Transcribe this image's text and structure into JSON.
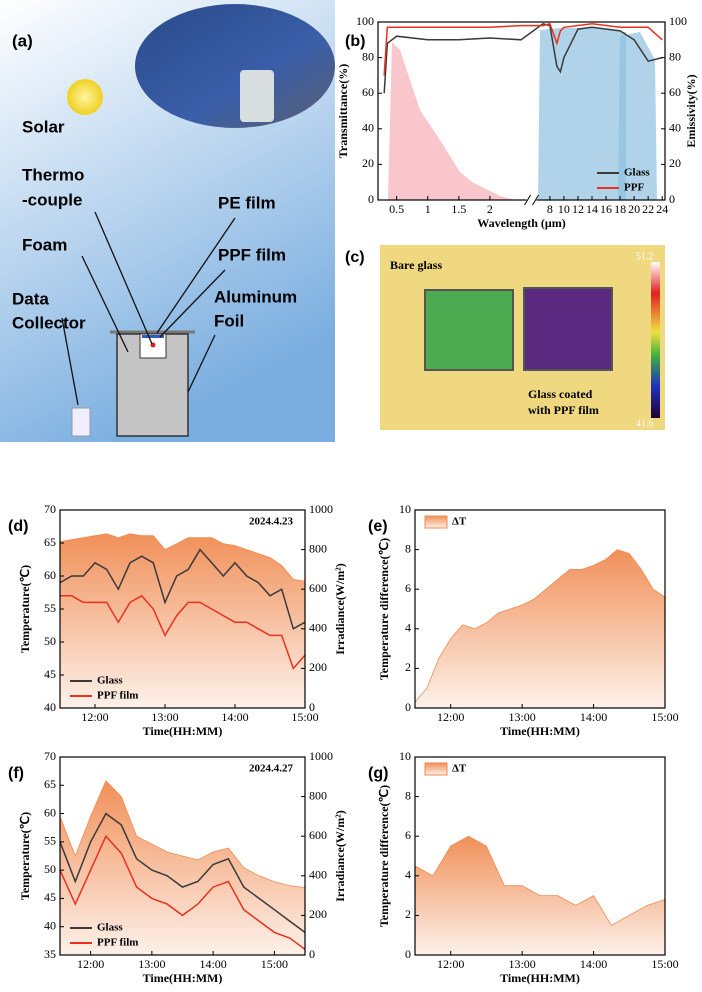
{
  "panel_a": {
    "title": "(a)",
    "labels": [
      "Solar",
      "Thermo",
      "-couple",
      "PE film",
      "Foam",
      "PPF film",
      "Data",
      "Collector",
      "Aluminum",
      "Foil"
    ]
  },
  "panel_c": {
    "title": "(c)",
    "labels": [
      "Bare glass",
      "Glass coated",
      "with PPF film"
    ],
    "scale_max": "51.2",
    "scale_min": "41.6"
  },
  "chart_data": [
    {
      "type": "line",
      "title": "(b)",
      "xlabel": "Wavelength (μm)",
      "ylabel": "Transmittance(%)",
      "y2label": "Emissivity(%)",
      "xlim": [
        0.2,
        24.4
      ],
      "xbreak": [
        2.6,
        6
      ],
      "xticks": [
        0.5,
        1,
        1.5,
        2,
        8,
        10,
        12,
        14,
        16,
        18,
        20,
        22,
        24
      ],
      "ylim": [
        0,
        100
      ],
      "yticks": [
        0,
        20,
        40,
        60,
        80,
        100
      ],
      "y2lim": [
        0,
        100
      ],
      "y2ticks": [
        0,
        20,
        40,
        60,
        80,
        100
      ],
      "legend": "lower right",
      "series": [
        {
          "name": "Glass",
          "color": "#3a3a3a",
          "x": [
            0.3,
            0.35,
            0.5,
            1,
            1.5,
            2,
            2.5,
            7,
            8,
            9,
            9.5,
            10,
            12,
            14,
            18,
            20,
            22,
            24
          ],
          "values": [
            60,
            88,
            92,
            90,
            90,
            91,
            90,
            99,
            98,
            75,
            72,
            80,
            96,
            97,
            95,
            90,
            78,
            80
          ]
        },
        {
          "name": "PPF",
          "color": "#e8321e",
          "x": [
            0.3,
            0.35,
            0.5,
            1,
            2,
            2.5,
            7,
            8,
            9,
            9.5,
            10,
            14,
            18,
            22,
            24
          ],
          "values": [
            70,
            97,
            97,
            97,
            97,
            98,
            98,
            99,
            88,
            95,
            97,
            99,
            97,
            97,
            90
          ]
        }
      ]
    },
    {
      "type": "line",
      "title": "(d)",
      "xlabel": "Time(HH:MM)",
      "ylabel": "Temperature(℃)",
      "y2label": "Irradiance(W/m²)",
      "annotation": "2024.4.23",
      "xlim": [
        "11:30",
        "15:00"
      ],
      "xticks": [
        "12:00",
        "13:00",
        "14:00",
        "15:00"
      ],
      "ylim": [
        40,
        70
      ],
      "yticks": [
        40,
        45,
        50,
        55,
        60,
        65,
        70
      ],
      "y2lim": [
        0,
        1000
      ],
      "y2ticks": [
        0,
        200,
        400,
        600,
        800,
        1000
      ],
      "legend": "lower left",
      "x": [
        "11:30",
        "11:40",
        "11:50",
        "12:00",
        "12:10",
        "12:20",
        "12:30",
        "12:40",
        "12:50",
        "13:00",
        "13:10",
        "13:20",
        "13:30",
        "13:40",
        "13:50",
        "14:00",
        "14:10",
        "14:20",
        "14:30",
        "14:40",
        "14:50",
        "15:00"
      ],
      "series": [
        {
          "color": "#f08a50",
          "axis": "y2",
          "style": "area",
          "values": [
            840,
            850,
            860,
            870,
            880,
            860,
            880,
            870,
            870,
            800,
            830,
            860,
            860,
            860,
            830,
            820,
            800,
            780,
            760,
            720,
            650,
            640
          ]
        },
        {
          "name": "Glass",
          "color": "#3a3a3a",
          "values": [
            59,
            60,
            60,
            62,
            61,
            58,
            62,
            63,
            62,
            56,
            60,
            61,
            64,
            62,
            60,
            62,
            60,
            59,
            57,
            58,
            52,
            53
          ]
        },
        {
          "name": "PPF film",
          "color": "#e8321e",
          "values": [
            57,
            57,
            56,
            56,
            56,
            53,
            56,
            57,
            55,
            51,
            54,
            56,
            56,
            55,
            54,
            53,
            53,
            52,
            51,
            51,
            46,
            48
          ]
        }
      ]
    },
    {
      "type": "area",
      "title": "(e)",
      "xlabel": "Time(HH:MM)",
      "ylabel": "Temperature difference(℃)",
      "xlim": [
        "11:30",
        "15:00"
      ],
      "xticks": [
        "12:00",
        "13:00",
        "14:00",
        "15:00"
      ],
      "ylim": [
        0,
        10
      ],
      "yticks": [
        0,
        2,
        4,
        6,
        8,
        10
      ],
      "legend": "upper left",
      "x": [
        "11:30",
        "11:40",
        "11:50",
        "12:00",
        "12:10",
        "12:20",
        "12:30",
        "12:40",
        "12:50",
        "13:00",
        "13:10",
        "13:20",
        "13:30",
        "13:40",
        "13:50",
        "14:00",
        "14:10",
        "14:20",
        "14:30",
        "14:40",
        "14:50",
        "15:00"
      ],
      "series": [
        {
          "name": "ΔT",
          "color": "#f08a50",
          "values": [
            0.3,
            1,
            2.5,
            3.5,
            4.2,
            4,
            4.3,
            4.8,
            5,
            5.2,
            5.5,
            6,
            6.5,
            7,
            7,
            7.2,
            7.5,
            8,
            7.8,
            7,
            6,
            5.6
          ]
        }
      ]
    },
    {
      "type": "line",
      "title": "(f)",
      "xlabel": "Time(HH:MM)",
      "ylabel": "Temperature(℃)",
      "y2label": "Irradiance(W/m²)",
      "annotation": "2024.4.27",
      "xlim": [
        "11:30",
        "15:30"
      ],
      "xticks": [
        "12:00",
        "13:00",
        "14:00",
        "15:00"
      ],
      "ylim": [
        35,
        70
      ],
      "yticks": [
        35,
        40,
        45,
        50,
        55,
        60,
        65,
        70
      ],
      "y2lim": [
        0,
        1000
      ],
      "y2ticks": [
        0,
        200,
        400,
        600,
        800,
        1000
      ],
      "legend": "lower left",
      "x": [
        "11:30",
        "11:45",
        "12:00",
        "12:15",
        "12:30",
        "12:45",
        "13:00",
        "13:15",
        "13:30",
        "13:45",
        "14:00",
        "14:15",
        "14:30",
        "14:45",
        "15:00",
        "15:15",
        "15:30"
      ],
      "series": [
        {
          "color": "#f08a50",
          "axis": "y2",
          "style": "area",
          "values": [
            700,
            500,
            700,
            880,
            800,
            600,
            560,
            520,
            500,
            480,
            520,
            540,
            440,
            400,
            370,
            350,
            340
          ]
        },
        {
          "name": "Glass",
          "color": "#3a3a3a",
          "values": [
            55,
            48,
            55,
            60,
            58,
            52,
            50,
            49,
            47,
            48,
            51,
            52,
            47,
            45,
            43,
            41,
            39
          ]
        },
        {
          "name": "PPF film",
          "color": "#e8321e",
          "values": [
            50,
            44,
            50,
            56,
            53,
            47,
            45,
            44,
            42,
            44,
            47,
            48,
            43,
            41,
            39,
            38,
            36
          ]
        }
      ]
    },
    {
      "type": "area",
      "title": "(g)",
      "xlabel": "Time(HH:MM)",
      "ylabel": "Temperature difference(℃)",
      "xlim": [
        "11:30",
        "15:00"
      ],
      "xticks": [
        "12:00",
        "13:00",
        "14:00",
        "15:00"
      ],
      "ylim": [
        0,
        10
      ],
      "yticks": [
        0,
        2,
        4,
        6,
        8,
        10
      ],
      "legend": "upper left",
      "x": [
        "11:30",
        "11:45",
        "12:00",
        "12:15",
        "12:30",
        "12:45",
        "13:00",
        "13:15",
        "13:30",
        "13:45",
        "14:00",
        "14:15",
        "14:30",
        "14:45",
        "15:00"
      ],
      "series": [
        {
          "name": "ΔT",
          "color": "#f08a50",
          "values": [
            4.5,
            4,
            5.5,
            6,
            5.5,
            3.5,
            3.5,
            3,
            3,
            2.5,
            3,
            1.5,
            2,
            2.5,
            2.8
          ]
        }
      ]
    }
  ]
}
